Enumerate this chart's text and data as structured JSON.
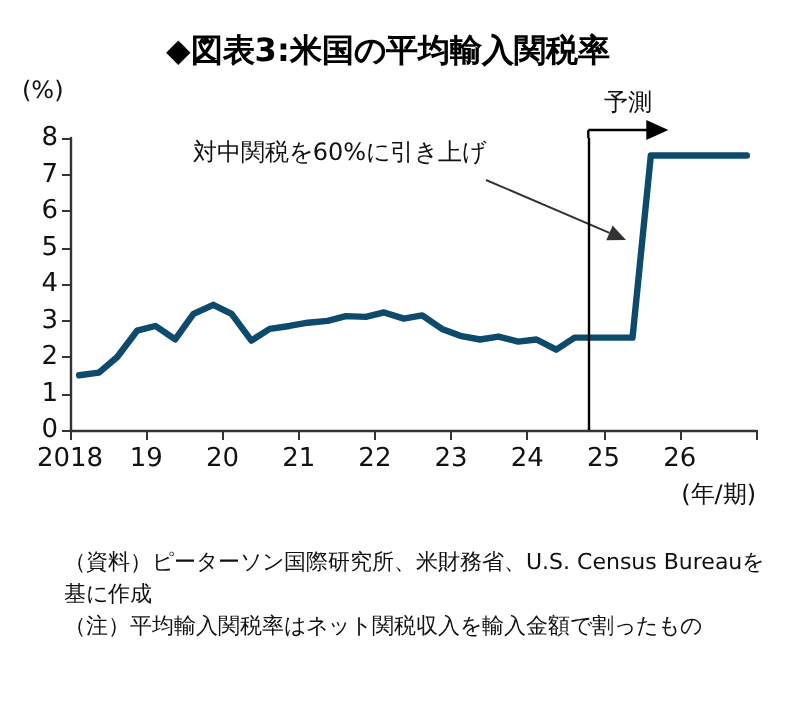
{
  "chart_data": {
    "type": "line",
    "title": "◆図表3:米国の平均輸入関税率",
    "ylabel": "(%)",
    "xlabel": "(年/期)",
    "x": [
      2018.12,
      2018.38,
      2018.62,
      2018.88,
      2019.12,
      2019.38,
      2019.62,
      2019.88,
      2020.12,
      2020.38,
      2020.62,
      2020.88,
      2021.12,
      2021.38,
      2021.62,
      2021.88,
      2022.12,
      2022.38,
      2022.62,
      2022.88,
      2023.12,
      2023.38,
      2023.62,
      2023.88,
      2024.12,
      2024.38,
      2024.62,
      2024.88,
      2025.12,
      2025.38,
      2025.62,
      2025.88,
      2026.12,
      2026.38,
      2026.62,
      2026.88
    ],
    "series": [
      {
        "color": "#0e4a6c",
        "values": [
          1.5,
          1.57,
          2.0,
          2.72,
          2.85,
          2.48,
          3.18,
          3.43,
          3.18,
          2.45,
          2.77,
          2.85,
          2.94,
          2.99,
          3.12,
          3.1,
          3.22,
          3.05,
          3.14,
          2.77,
          2.58,
          2.48,
          2.56,
          2.42,
          2.48,
          2.2,
          2.53,
          2.53,
          2.53,
          2.53,
          7.52,
          7.52,
          7.52,
          7.52,
          7.52,
          7.52
        ]
      }
    ],
    "xlim": [
      2018,
      2027
    ],
    "xticks": [
      2018,
      {
        "value": 2019,
        "label": "19"
      },
      {
        "value": 2020,
        "label": "20"
      },
      {
        "value": 2021,
        "label": "21"
      },
      {
        "value": 2022,
        "label": "22"
      },
      {
        "value": 2023,
        "label": "23"
      },
      {
        "value": 2024,
        "label": "24"
      },
      {
        "value": 2025,
        "label": "25"
      },
      {
        "value": 2026,
        "label": "26"
      },
      {
        "value": 2027,
        "label": null
      }
    ],
    "ylim": [
      0,
      8
    ],
    "yticks": [
      0,
      1,
      2,
      3,
      4,
      5,
      6,
      7,
      8
    ],
    "grid": false,
    "marker": "none",
    "line_style": "solid",
    "ref_lines": [
      {
        "axis": "x",
        "value": 2024.8,
        "label": "予測",
        "color": "#000000"
      }
    ],
    "annotations": [
      "対中関税を60%に引き上げ",
      "（資料）ピーターソン国際研究所、米財務省、U.S. Census Bureauを基に作成",
      "（注）平均輸入関税率はネット関税収入を輸入金額で割ったもの"
    ]
  }
}
